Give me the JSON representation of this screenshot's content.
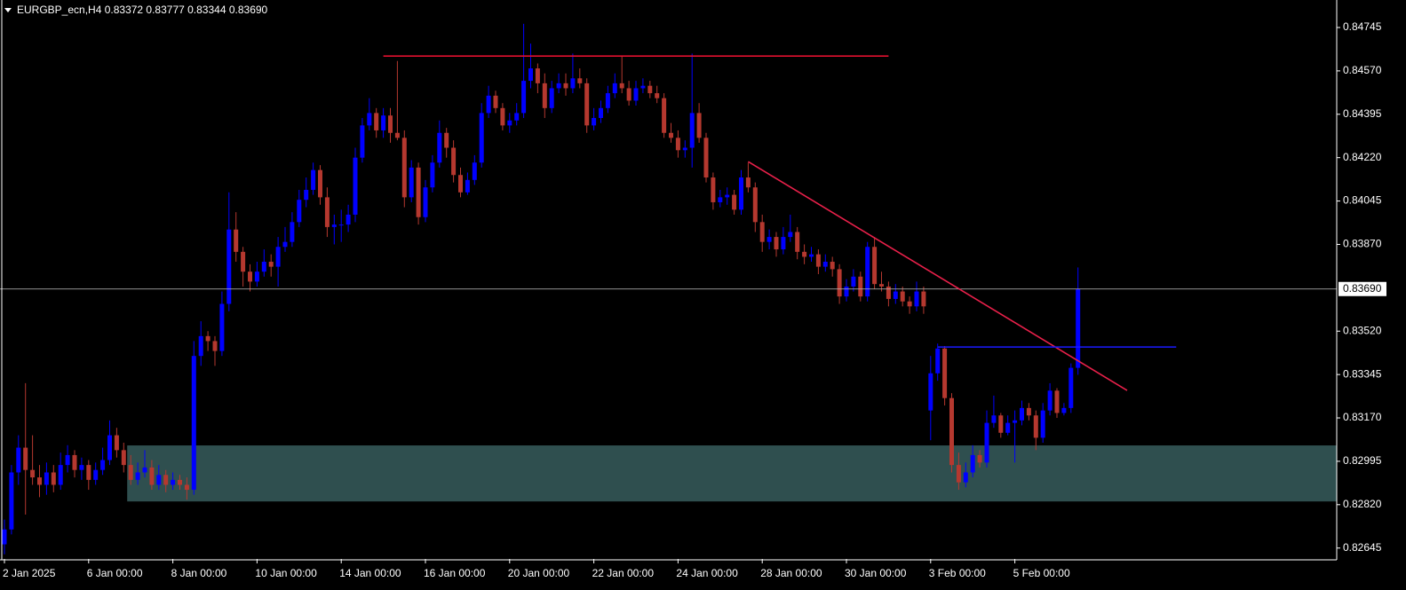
{
  "chart_data": {
    "type": "candlestick",
    "title": "EURGBP_ecn,H4  0.83372 0.83777 0.83344 0.83690",
    "bull_color": "#0000ff",
    "bear_color": "#b5382f",
    "ylim": [
      0.82601,
      0.84856
    ],
    "yticks": [
      {
        "value": 0.84745,
        "label": "0.84745"
      },
      {
        "value": 0.8457,
        "label": "0.84570"
      },
      {
        "value": 0.84395,
        "label": "0.84395"
      },
      {
        "value": 0.8422,
        "label": "0.84220"
      },
      {
        "value": 0.84045,
        "label": "0.84045"
      },
      {
        "value": 0.8387,
        "label": "0.83870"
      },
      {
        "value": 0.8352,
        "label": "0.83520"
      },
      {
        "value": 0.83345,
        "label": "0.83345"
      },
      {
        "value": 0.8317,
        "label": "0.83170"
      },
      {
        "value": 0.82995,
        "label": "0.82995"
      },
      {
        "value": 0.8282,
        "label": "0.82820"
      },
      {
        "value": 0.82645,
        "label": "0.82645"
      }
    ],
    "xticks": [
      {
        "value": 0,
        "label": "2 Jan 2025"
      },
      {
        "value": 12,
        "label": "6 Jan 00:00"
      },
      {
        "value": 24,
        "label": "8 Jan 00:00"
      },
      {
        "value": 36,
        "label": "10 Jan 00:00"
      },
      {
        "value": 48,
        "label": "14 Jan 00:00"
      },
      {
        "value": 60,
        "label": "16 Jan 00:00"
      },
      {
        "value": 72,
        "label": "20 Jan 00:00"
      },
      {
        "value": 84,
        "label": "22 Jan 00:00"
      },
      {
        "value": 96,
        "label": "24 Jan 00:00"
      },
      {
        "value": 108,
        "label": "28 Jan 00:00"
      },
      {
        "value": 120,
        "label": "30 Jan 00:00"
      },
      {
        "value": 132,
        "label": "3 Feb 00:00"
      },
      {
        "value": 144,
        "label": "5 Feb 00:00"
      }
    ],
    "current_price": {
      "value": 0.8369,
      "label": "0.83690",
      "color": "#bfbfbf"
    },
    "zone": {
      "top": 0.83059,
      "bottom": 0.82833,
      "from_index": 18,
      "color": "#2f4f4f"
    },
    "lines": [
      {
        "from_index": 54,
        "to_index": 126,
        "from_price": 0.8463,
        "to_price": 0.8463,
        "color": "#e0102f"
      },
      {
        "from_index": 106,
        "to_index": 160,
        "from_price": 0.84204,
        "to_price": 0.83281,
        "color": "#e8204a"
      },
      {
        "from_index": 133,
        "to_index": 167,
        "from_price": 0.83456,
        "to_price": 0.83456,
        "color": "#1a1aff"
      }
    ],
    "ohlc": [
      [
        0.8266,
        0.8276,
        0.8262,
        0.8272
      ],
      [
        0.8272,
        0.8298,
        0.827,
        0.8295
      ],
      [
        0.8295,
        0.831,
        0.829,
        0.8305
      ],
      [
        0.8305,
        0.8331,
        0.8278,
        0.8296
      ],
      [
        0.8296,
        0.831,
        0.829,
        0.8293
      ],
      [
        0.8293,
        0.8298,
        0.8285,
        0.829
      ],
      [
        0.829,
        0.8299,
        0.8286,
        0.8295
      ],
      [
        0.8295,
        0.8298,
        0.8287,
        0.829
      ],
      [
        0.829,
        0.8303,
        0.8288,
        0.8298
      ],
      [
        0.8298,
        0.8306,
        0.8295,
        0.8302
      ],
      [
        0.8302,
        0.8304,
        0.8293,
        0.8296
      ],
      [
        0.8296,
        0.8301,
        0.8292,
        0.8298
      ],
      [
        0.8298,
        0.83,
        0.8288,
        0.8292
      ],
      [
        0.8292,
        0.8299,
        0.829,
        0.8296
      ],
      [
        0.8296,
        0.8305,
        0.8294,
        0.83
      ],
      [
        0.83,
        0.8316,
        0.8298,
        0.831
      ],
      [
        0.831,
        0.8313,
        0.8301,
        0.8304
      ],
      [
        0.8304,
        0.8307,
        0.8295,
        0.8298
      ],
      [
        0.8298,
        0.8302,
        0.829,
        0.8292
      ],
      [
        0.8292,
        0.8299,
        0.829,
        0.8295
      ],
      [
        0.8295,
        0.8304,
        0.8293,
        0.8297
      ],
      [
        0.8297,
        0.83,
        0.8288,
        0.829
      ],
      [
        0.829,
        0.8298,
        0.8288,
        0.8294
      ],
      [
        0.8294,
        0.8296,
        0.8287,
        0.829
      ],
      [
        0.829,
        0.8295,
        0.8288,
        0.8292
      ],
      [
        0.8292,
        0.8294,
        0.8288,
        0.829
      ],
      [
        0.829,
        0.8293,
        0.8284,
        0.8288
      ],
      [
        0.8288,
        0.8348,
        0.8286,
        0.8342
      ],
      [
        0.8342,
        0.8356,
        0.8338,
        0.835
      ],
      [
        0.835,
        0.8352,
        0.8344,
        0.8348
      ],
      [
        0.8348,
        0.835,
        0.8338,
        0.8344
      ],
      [
        0.8344,
        0.8368,
        0.8342,
        0.8363
      ],
      [
        0.8363,
        0.8408,
        0.836,
        0.8393
      ],
      [
        0.8393,
        0.84,
        0.838,
        0.8384
      ],
      [
        0.8384,
        0.8386,
        0.837,
        0.8376
      ],
      [
        0.8376,
        0.8379,
        0.8368,
        0.8372
      ],
      [
        0.8372,
        0.838,
        0.837,
        0.8376
      ],
      [
        0.8376,
        0.8385,
        0.8374,
        0.838
      ],
      [
        0.838,
        0.8383,
        0.8374,
        0.8378
      ],
      [
        0.8378,
        0.839,
        0.837,
        0.8386
      ],
      [
        0.8386,
        0.8394,
        0.8384,
        0.8388
      ],
      [
        0.8388,
        0.84,
        0.8386,
        0.8396
      ],
      [
        0.8396,
        0.8409,
        0.8394,
        0.8405
      ],
      [
        0.8405,
        0.8414,
        0.8402,
        0.8409
      ],
      [
        0.8409,
        0.842,
        0.8407,
        0.8417
      ],
      [
        0.8417,
        0.8419,
        0.8403,
        0.8406
      ],
      [
        0.8406,
        0.841,
        0.839,
        0.8394
      ],
      [
        0.8394,
        0.8399,
        0.8387,
        0.8395
      ],
      [
        0.8395,
        0.8401,
        0.8388,
        0.8395
      ],
      [
        0.8395,
        0.8403,
        0.8392,
        0.8399
      ],
      [
        0.8399,
        0.8426,
        0.8396,
        0.8422
      ],
      [
        0.8422,
        0.8438,
        0.842,
        0.8435
      ],
      [
        0.8435,
        0.8446,
        0.8433,
        0.844
      ],
      [
        0.844,
        0.8442,
        0.843,
        0.8433
      ],
      [
        0.8433,
        0.8442,
        0.843,
        0.8439
      ],
      [
        0.8439,
        0.8442,
        0.8428,
        0.8432
      ],
      [
        0.8432,
        0.8461,
        0.8429,
        0.843
      ],
      [
        0.843,
        0.8433,
        0.8402,
        0.8406
      ],
      [
        0.8406,
        0.8421,
        0.8404,
        0.8418
      ],
      [
        0.8418,
        0.842,
        0.8395,
        0.8398
      ],
      [
        0.8398,
        0.8413,
        0.8396,
        0.841
      ],
      [
        0.841,
        0.8423,
        0.8408,
        0.842
      ],
      [
        0.842,
        0.8437,
        0.8418,
        0.8432
      ],
      [
        0.8432,
        0.8434,
        0.8422,
        0.8426
      ],
      [
        0.8426,
        0.8429,
        0.8412,
        0.8415
      ],
      [
        0.8415,
        0.8418,
        0.8406,
        0.8408
      ],
      [
        0.8408,
        0.8416,
        0.8407,
        0.8413
      ],
      [
        0.8413,
        0.8423,
        0.8411,
        0.842
      ],
      [
        0.842,
        0.8444,
        0.8418,
        0.844
      ],
      [
        0.844,
        0.8451,
        0.8438,
        0.8447
      ],
      [
        0.8447,
        0.8449,
        0.844,
        0.8442
      ],
      [
        0.8442,
        0.8444,
        0.8433,
        0.8435
      ],
      [
        0.8435,
        0.844,
        0.8432,
        0.8437
      ],
      [
        0.8437,
        0.8444,
        0.8435,
        0.844
      ],
      [
        0.844,
        0.8476,
        0.8438,
        0.8453
      ],
      [
        0.8453,
        0.8468,
        0.845,
        0.8458
      ],
      [
        0.8458,
        0.846,
        0.8448,
        0.8452
      ],
      [
        0.8452,
        0.8456,
        0.8438,
        0.8442
      ],
      [
        0.8442,
        0.8453,
        0.844,
        0.845
      ],
      [
        0.845,
        0.8456,
        0.8448,
        0.8452
      ],
      [
        0.8452,
        0.8456,
        0.8447,
        0.845
      ],
      [
        0.845,
        0.8464,
        0.8448,
        0.8454
      ],
      [
        0.8454,
        0.8458,
        0.845,
        0.8452
      ],
      [
        0.8452,
        0.8454,
        0.8432,
        0.8435
      ],
      [
        0.8435,
        0.8442,
        0.8433,
        0.8438
      ],
      [
        0.8438,
        0.8445,
        0.8436,
        0.8442
      ],
      [
        0.8442,
        0.8451,
        0.844,
        0.8448
      ],
      [
        0.8448,
        0.8456,
        0.8446,
        0.8452
      ],
      [
        0.8452,
        0.8463,
        0.8448,
        0.845
      ],
      [
        0.845,
        0.8453,
        0.8443,
        0.8445
      ],
      [
        0.8445,
        0.8453,
        0.8443,
        0.845
      ],
      [
        0.845,
        0.8454,
        0.8448,
        0.8451
      ],
      [
        0.8451,
        0.8453,
        0.8446,
        0.8448
      ],
      [
        0.8448,
        0.8451,
        0.8444,
        0.8446
      ],
      [
        0.8446,
        0.8448,
        0.843,
        0.8432
      ],
      [
        0.8432,
        0.8436,
        0.8428,
        0.843
      ],
      [
        0.843,
        0.8433,
        0.8422,
        0.8425
      ],
      [
        0.8425,
        0.8429,
        0.8422,
        0.8426
      ],
      [
        0.8426,
        0.8464,
        0.8418,
        0.844
      ],
      [
        0.844,
        0.8444,
        0.8428,
        0.843
      ],
      [
        0.843,
        0.8432,
        0.8412,
        0.8414
      ],
      [
        0.8414,
        0.8416,
        0.8401,
        0.8404
      ],
      [
        0.8404,
        0.8409,
        0.8402,
        0.8406
      ],
      [
        0.8406,
        0.841,
        0.8403,
        0.8407
      ],
      [
        0.8407,
        0.8409,
        0.8399,
        0.8401
      ],
      [
        0.8401,
        0.8417,
        0.8399,
        0.8414
      ],
      [
        0.8414,
        0.842,
        0.8408,
        0.841
      ],
      [
        0.841,
        0.8412,
        0.8392,
        0.8396
      ],
      [
        0.8396,
        0.8399,
        0.8384,
        0.8388
      ],
      [
        0.8388,
        0.8393,
        0.8385,
        0.839
      ],
      [
        0.839,
        0.8392,
        0.8382,
        0.8385
      ],
      [
        0.8385,
        0.8394,
        0.8383,
        0.839
      ],
      [
        0.839,
        0.8399,
        0.8388,
        0.8392
      ],
      [
        0.8392,
        0.8394,
        0.8381,
        0.8384
      ],
      [
        0.8384,
        0.8387,
        0.8379,
        0.8382
      ],
      [
        0.8382,
        0.8386,
        0.838,
        0.8383
      ],
      [
        0.8383,
        0.8385,
        0.8375,
        0.8378
      ],
      [
        0.8378,
        0.8383,
        0.8376,
        0.838
      ],
      [
        0.838,
        0.8382,
        0.8374,
        0.8377
      ],
      [
        0.8377,
        0.8379,
        0.8363,
        0.8366
      ],
      [
        0.8366,
        0.8373,
        0.8364,
        0.837
      ],
      [
        0.837,
        0.8377,
        0.8368,
        0.8374
      ],
      [
        0.8374,
        0.8376,
        0.8364,
        0.8366
      ],
      [
        0.8366,
        0.8388,
        0.8364,
        0.8386
      ],
      [
        0.8386,
        0.839,
        0.8369,
        0.8371
      ],
      [
        0.8371,
        0.8376,
        0.8368,
        0.837
      ],
      [
        0.837,
        0.8372,
        0.8362,
        0.8365
      ],
      [
        0.8365,
        0.8371,
        0.8363,
        0.8368
      ],
      [
        0.8368,
        0.837,
        0.8362,
        0.8364
      ],
      [
        0.8364,
        0.8366,
        0.8359,
        0.8362
      ],
      [
        0.8362,
        0.8372,
        0.836,
        0.8368
      ],
      [
        0.8368,
        0.837,
        0.8359,
        0.8362
      ],
      [
        0.832,
        0.8342,
        0.8308,
        0.8335
      ],
      [
        0.8335,
        0.8347,
        0.8332,
        0.8345
      ],
      [
        0.8345,
        0.8346,
        0.8322,
        0.8325
      ],
      [
        0.8325,
        0.8327,
        0.8295,
        0.8298
      ],
      [
        0.8298,
        0.8303,
        0.8288,
        0.8291
      ],
      [
        0.8291,
        0.8299,
        0.8289,
        0.8295
      ],
      [
        0.8295,
        0.8306,
        0.8293,
        0.8302
      ],
      [
        0.8302,
        0.8304,
        0.8297,
        0.8299
      ],
      [
        0.8299,
        0.832,
        0.8297,
        0.8315
      ],
      [
        0.8315,
        0.8326,
        0.8313,
        0.8318
      ],
      [
        0.8318,
        0.8319,
        0.8309,
        0.8311
      ],
      [
        0.8311,
        0.8318,
        0.831,
        0.8315
      ],
      [
        0.8315,
        0.832,
        0.8299,
        0.8316
      ],
      [
        0.8316,
        0.8324,
        0.8314,
        0.8321
      ],
      [
        0.8321,
        0.8323,
        0.8316,
        0.8318
      ],
      [
        0.8318,
        0.832,
        0.8304,
        0.8309
      ],
      [
        0.8309,
        0.8323,
        0.8307,
        0.832
      ],
      [
        0.832,
        0.8331,
        0.8318,
        0.8328
      ],
      [
        0.8328,
        0.8329,
        0.8317,
        0.8319
      ],
      [
        0.8319,
        0.8323,
        0.8318,
        0.8321
      ],
      [
        0.8321,
        0.8339,
        0.8319,
        0.83372
      ],
      [
        0.83372,
        0.83777,
        0.83344,
        0.8369
      ]
    ]
  }
}
